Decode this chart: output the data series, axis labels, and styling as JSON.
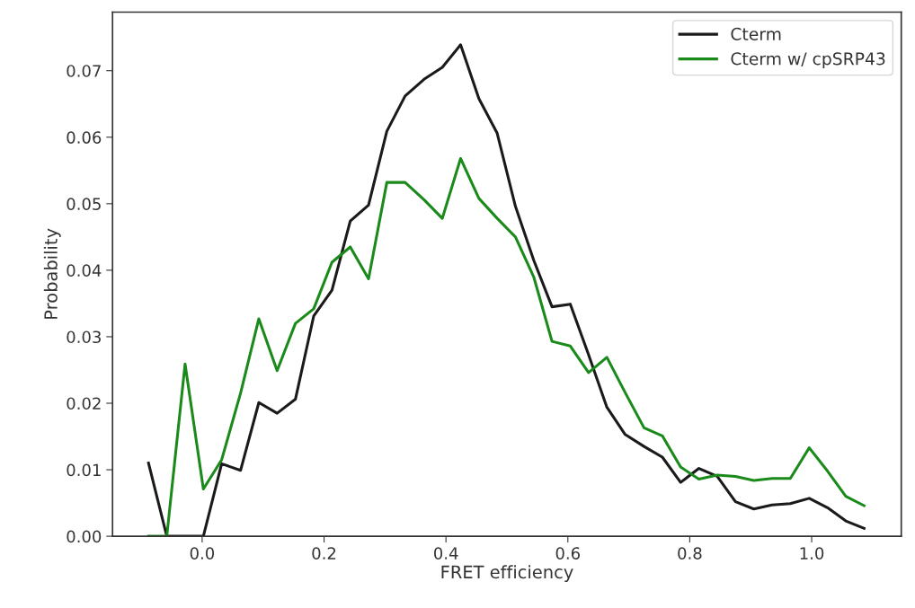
{
  "chart_data": {
    "type": "line",
    "xlabel": "FRET efficiency",
    "ylabel": "Probability",
    "x": [
      -0.088,
      -0.058,
      -0.028,
      0.002,
      0.032,
      0.063,
      0.093,
      0.123,
      0.153,
      0.183,
      0.213,
      0.243,
      0.273,
      0.303,
      0.333,
      0.364,
      0.394,
      0.424,
      0.454,
      0.484,
      0.514,
      0.544,
      0.574,
      0.604,
      0.634,
      0.664,
      0.694,
      0.725,
      0.755,
      0.785,
      0.815,
      0.845,
      0.875,
      0.905,
      0.935,
      0.965,
      0.996,
      1.026,
      1.056,
      1.086
    ],
    "series": [
      {
        "name": "Cterm",
        "color": "#1a1a1a",
        "values": [
          0.011,
          0,
          0,
          0,
          0.0109,
          0.0099,
          0.0201,
          0.0185,
          0.0206,
          0.0331,
          0.037,
          0.0474,
          0.0498,
          0.0609,
          0.0662,
          0.0687,
          0.0705,
          0.0739,
          0.0658,
          0.0606,
          0.0496,
          0.0415,
          0.0345,
          0.0349,
          0.0273,
          0.0194,
          0.0153,
          0.0135,
          0.0119,
          0.0081,
          0.0102,
          0.009,
          0.0052,
          0.0041,
          0.0047,
          0.0049,
          0.0057,
          0.0043,
          0.0023,
          0.0012
        ]
      },
      {
        "name": "Cterm w/ cpSRP43",
        "color": "#1a8a1a",
        "values": [
          0,
          0,
          0.0259,
          0.0071,
          0.0115,
          0.0215,
          0.0327,
          0.0249,
          0.032,
          0.0342,
          0.0412,
          0.0435,
          0.0387,
          0.0532,
          0.0532,
          0.0506,
          0.0478,
          0.0568,
          0.0508,
          0.0478,
          0.045,
          0.039,
          0.0293,
          0.0286,
          0.0246,
          0.0269,
          0.0216,
          0.0163,
          0.0151,
          0.0104,
          0.0086,
          0.0092,
          0.009,
          0.0084,
          0.0087,
          0.0087,
          0.0133,
          0.0098,
          0.006,
          0.0046
        ]
      }
    ],
    "xlim": [
      -0.147,
      1.147
    ],
    "ylim": [
      0,
      0.0788
    ],
    "xticks": [
      {
        "value": 0,
        "label": "0.0"
      },
      {
        "value": 0.2,
        "label": "0.2"
      },
      {
        "value": 0.4,
        "label": "0.4"
      },
      {
        "value": 0.6,
        "label": "0.6"
      },
      {
        "value": 0.8,
        "label": "0.8"
      },
      {
        "value": 1,
        "label": "1.0"
      }
    ],
    "yticks": [
      {
        "value": 0,
        "label": "0.00"
      },
      {
        "value": 0.01,
        "label": "0.01"
      },
      {
        "value": 0.02,
        "label": "0.02"
      },
      {
        "value": 0.03,
        "label": "0.03"
      },
      {
        "value": 0.04,
        "label": "0.04"
      },
      {
        "value": 0.05,
        "label": "0.05"
      },
      {
        "value": 0.06,
        "label": "0.06"
      },
      {
        "value": 0.07,
        "label": "0.07"
      }
    ],
    "grid": false,
    "legend": "top right",
    "marker": "none",
    "line_style": "solid"
  }
}
